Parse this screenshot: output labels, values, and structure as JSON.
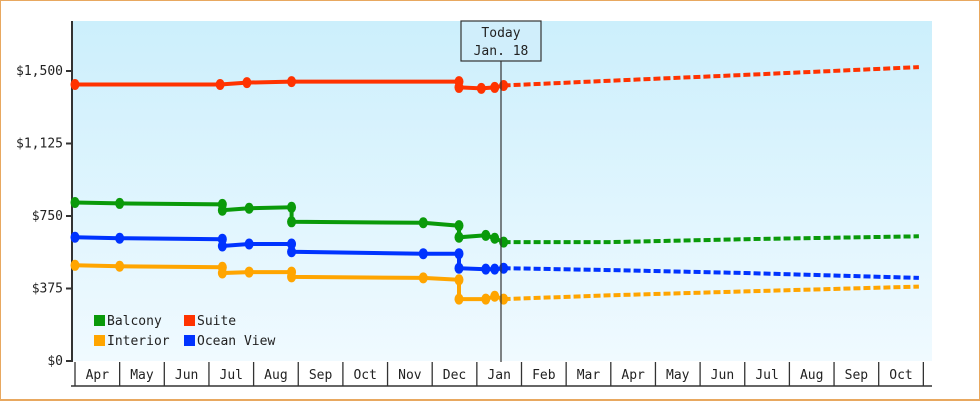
{
  "chart_data": {
    "type": "line",
    "title": "",
    "xlabel": "",
    "ylabel": "",
    "ylim": [
      0,
      1750
    ],
    "y_ticks": [
      {
        "value": 0,
        "label": "$0"
      },
      {
        "value": 375,
        "label": "$375"
      },
      {
        "value": 750,
        "label": "$750"
      },
      {
        "value": 1125,
        "label": "$1,125"
      },
      {
        "value": 1500,
        "label": "$1,500"
      }
    ],
    "categories": [
      "Apr",
      "May",
      "Jun",
      "Jul",
      "Aug",
      "Sep",
      "Oct",
      "Nov",
      "Dec",
      "Jan",
      "Feb",
      "Mar",
      "Apr",
      "May",
      "Jun",
      "Jul",
      "Aug",
      "Sep",
      "Oct"
    ],
    "today_marker": {
      "line1": "Today",
      "line2": "Jan. 18"
    },
    "grid": false,
    "legend_position": "bottom-left inside",
    "legend": [
      {
        "name": "Balcony",
        "color": "#0a9a0a"
      },
      {
        "name": "Suite",
        "color": "#ff3300"
      },
      {
        "name": "Interior",
        "color": "#ffa500"
      },
      {
        "name": "Ocean View",
        "color": "#0033ff"
      }
    ],
    "series": [
      {
        "name": "Suite",
        "color": "#ff3300",
        "history": [
          [
            0,
            1430
          ],
          [
            3.25,
            1430
          ],
          [
            3.85,
            1440
          ],
          [
            4.85,
            1445
          ],
          [
            8.6,
            1445
          ],
          [
            8.6,
            1415
          ],
          [
            9.1,
            1410
          ],
          [
            9.4,
            1415
          ],
          [
            9.6,
            1425
          ]
        ],
        "forecast": [
          [
            9.6,
            1425
          ],
          [
            12,
            1450
          ],
          [
            15,
            1480
          ],
          [
            18.9,
            1520
          ]
        ]
      },
      {
        "name": "Balcony",
        "color": "#0a9a0a",
        "history": [
          [
            0,
            820
          ],
          [
            1.0,
            815
          ],
          [
            3.3,
            810
          ],
          [
            3.3,
            780
          ],
          [
            3.9,
            790
          ],
          [
            4.85,
            795
          ],
          [
            4.85,
            720
          ],
          [
            7.8,
            715
          ],
          [
            8.6,
            700
          ],
          [
            8.6,
            640
          ],
          [
            9.2,
            650
          ],
          [
            9.4,
            635
          ],
          [
            9.6,
            615
          ]
        ],
        "forecast": [
          [
            9.6,
            615
          ],
          [
            12,
            615
          ],
          [
            15,
            630
          ],
          [
            18.9,
            645
          ]
        ]
      },
      {
        "name": "Ocean View",
        "color": "#0033ff",
        "history": [
          [
            0,
            640
          ],
          [
            1.0,
            635
          ],
          [
            3.3,
            630
          ],
          [
            3.3,
            595
          ],
          [
            3.9,
            605
          ],
          [
            4.85,
            605
          ],
          [
            4.85,
            565
          ],
          [
            7.8,
            555
          ],
          [
            8.6,
            555
          ],
          [
            8.6,
            480
          ],
          [
            9.2,
            475
          ],
          [
            9.4,
            475
          ],
          [
            9.6,
            480
          ]
        ],
        "forecast": [
          [
            9.6,
            480
          ],
          [
            12,
            470
          ],
          [
            15,
            455
          ],
          [
            18.9,
            430
          ]
        ]
      },
      {
        "name": "Interior",
        "color": "#ffa500",
        "history": [
          [
            0,
            495
          ],
          [
            1.0,
            490
          ],
          [
            3.3,
            485
          ],
          [
            3.3,
            455
          ],
          [
            3.9,
            460
          ],
          [
            4.85,
            460
          ],
          [
            4.85,
            435
          ],
          [
            7.8,
            430
          ],
          [
            8.6,
            420
          ],
          [
            8.6,
            320
          ],
          [
            9.2,
            320
          ],
          [
            9.4,
            335
          ],
          [
            9.6,
            320
          ]
        ],
        "forecast": [
          [
            9.6,
            320
          ],
          [
            12,
            340
          ],
          [
            15,
            360
          ],
          [
            18.9,
            385
          ]
        ]
      }
    ]
  }
}
